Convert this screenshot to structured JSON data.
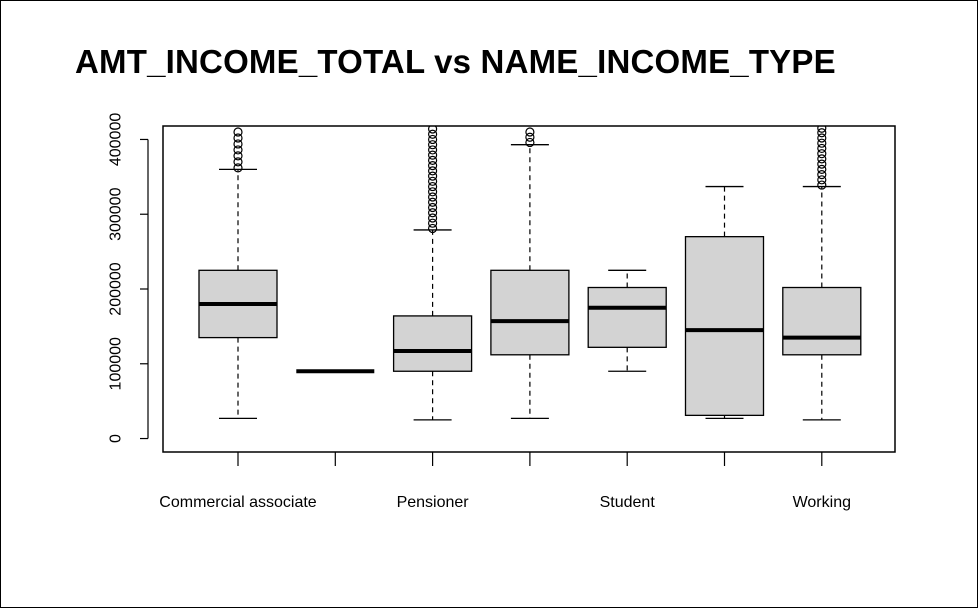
{
  "chart_data": {
    "type": "box",
    "title": "AMT_INCOME_TOTAL vs NAME_INCOME_TYPE",
    "xlabel": "",
    "ylabel": "",
    "ylim": [
      -18000,
      418000
    ],
    "yticks": [
      0,
      100000,
      200000,
      300000,
      400000
    ],
    "yticklabels": [
      "0",
      "100000",
      "200000",
      "300000",
      "400000"
    ],
    "categories": [
      "Commercial associate",
      "",
      "Pensioner",
      "",
      "Student",
      "",
      "Working"
    ],
    "boxes": [
      {
        "whisker_low": 27000,
        "q1": 135000,
        "median": 180000,
        "q3": 225000,
        "whisker_high": 360000,
        "outliers": [
          362000,
          370000,
          378000,
          386000,
          394000,
          402000,
          410000
        ]
      },
      {
        "whisker_low": 90000,
        "q1": 90000,
        "median": 90000,
        "q3": 90000,
        "whisker_high": 90000,
        "outliers": []
      },
      {
        "whisker_low": 25000,
        "q1": 90000,
        "median": 117000,
        "q3": 164000,
        "whisker_high": 279000,
        "outliers": [
          281000,
          288000,
          295000,
          302000,
          309000,
          316000,
          323000,
          330000,
          337000,
          344000,
          351000,
          358000,
          365000,
          372000,
          379000,
          386000,
          393000,
          400000,
          407000,
          414000
        ]
      },
      {
        "whisker_low": 27000,
        "q1": 112000,
        "median": 157000,
        "q3": 225000,
        "whisker_high": 393000,
        "outliers": [
          396000,
          403000,
          410000
        ]
      },
      {
        "whisker_low": 90000,
        "q1": 122000,
        "median": 175000,
        "q3": 202000,
        "whisker_high": 225000,
        "outliers": []
      },
      {
        "whisker_low": 27000,
        "q1": 31000,
        "median": 145000,
        "q3": 270000,
        "whisker_high": 337000,
        "outliers": []
      },
      {
        "whisker_low": 25000,
        "q1": 112000,
        "median": 135000,
        "q3": 202000,
        "whisker_high": 337000,
        "outliers": [
          339000,
          346000,
          353000,
          360000,
          367000,
          374000,
          381000,
          388000,
          395000,
          402000,
          409000,
          415000
        ]
      }
    ],
    "box_fill": "#d3d3d3",
    "grid": false,
    "legend": "none"
  }
}
